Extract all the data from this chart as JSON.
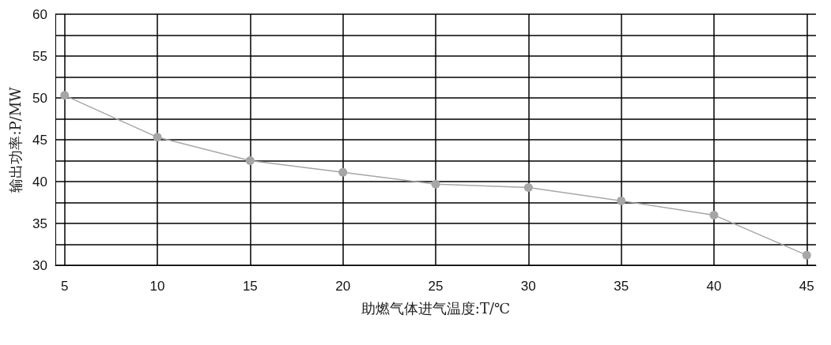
{
  "chart_data": {
    "type": "line",
    "xlabel": "助燃气体进气温度:T/℃",
    "ylabel": "输出功率:P/MW",
    "x": [
      5,
      10,
      15,
      20,
      25,
      30,
      35,
      40,
      45
    ],
    "series": [
      {
        "color": "#a6a6a6",
        "values": [
          50.3,
          45.3,
          42.5,
          41.1,
          39.7,
          39.3,
          37.7,
          36.0,
          31.2
        ]
      }
    ],
    "xlim": [
      4.5,
      45.5
    ],
    "xticks": [
      5,
      10,
      15,
      20,
      25,
      30,
      35,
      40,
      45
    ],
    "ylim": [
      30,
      60
    ],
    "yticks": [
      30,
      {
        "value": 32.5,
        "label": null
      },
      35,
      {
        "value": 37.5,
        "label": null
      },
      40,
      {
        "value": 42.5,
        "label": null
      },
      45,
      {
        "value": 47.5,
        "label": null
      },
      50,
      {
        "value": 52.5,
        "label": null
      },
      55,
      {
        "value": 57.5,
        "label": null
      },
      60
    ],
    "grid": true,
    "marker": "circle",
    "line_style": "solid"
  }
}
